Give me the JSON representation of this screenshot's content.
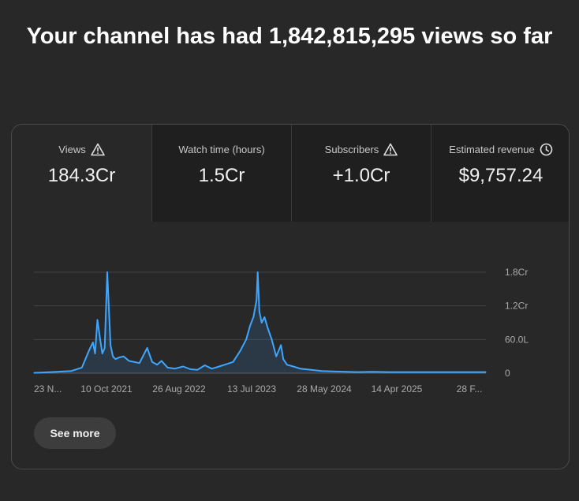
{
  "headline": "Your channel has had 1,842,815,295 views so far",
  "tabs": [
    {
      "label": "Views",
      "value": "184.3Cr",
      "icon": "warning-icon"
    },
    {
      "label": "Watch time (hours)",
      "value": "1.5Cr",
      "icon": ""
    },
    {
      "label": "Subscribers",
      "value": "+1.0Cr",
      "icon": "warning-icon"
    },
    {
      "label": "Estimated revenue",
      "value": "$9,757.24",
      "icon": "clock-icon"
    }
  ],
  "see_more_label": "See more",
  "colors": {
    "line": "#3ea6ff",
    "background": "#282828",
    "tab_inactive": "#1f1f1f"
  },
  "chart_data": {
    "type": "area",
    "series": [
      {
        "x": [
          "2020-11-23",
          "2021-01-15",
          "2021-03-01",
          "2021-05-01",
          "2021-06-15",
          "2021-07-15",
          "2021-08-01",
          "2021-08-10",
          "2021-08-20",
          "2021-09-01",
          "2021-09-10",
          "2021-09-20",
          "2021-10-01",
          "2021-10-15",
          "2021-10-25",
          "2021-11-05",
          "2021-11-20",
          "2021-12-10",
          "2022-01-01",
          "2022-02-15",
          "2022-03-20",
          "2022-04-10",
          "2022-05-01",
          "2022-05-20",
          "2022-06-15",
          "2022-07-15",
          "2022-08-20",
          "2022-09-20",
          "2022-10-20",
          "2022-11-20",
          "2022-12-20",
          "2023-01-20",
          "2023-02-20",
          "2023-03-20",
          "2023-04-20",
          "2023-05-15",
          "2023-06-01",
          "2023-06-15",
          "2023-06-28",
          "2023-07-03",
          "2023-07-10",
          "2023-07-20",
          "2023-08-01",
          "2023-08-15",
          "2023-09-01",
          "2023-09-20",
          "2023-10-10",
          "2023-10-20",
          "2023-11-05",
          "2023-12-01",
          "2024-01-01",
          "2024-02-15",
          "2024-04-01",
          "2024-05-28",
          "2024-07-15",
          "2024-09-01",
          "2024-11-01",
          "2025-01-15",
          "2025-04-14",
          "2025-07-01",
          "2025-10-01",
          "2026-02-28"
        ],
        "values": [
          0.6,
          1.5,
          2.5,
          4,
          10,
          40,
          55,
          35,
          95,
          60,
          35,
          45,
          180,
          50,
          30,
          25,
          28,
          30,
          22,
          18,
          45,
          20,
          15,
          22,
          10,
          8,
          12,
          7,
          6,
          14,
          8,
          12,
          16,
          20,
          40,
          60,
          85,
          100,
          130,
          180,
          110,
          90,
          100,
          80,
          60,
          30,
          50,
          25,
          15,
          12,
          8,
          6,
          4,
          3,
          2.5,
          2,
          2.5,
          2,
          2,
          2,
          2,
          2
        ]
      }
    ],
    "xtick_labels": [
      "23 N...",
      "10 Oct 2021",
      "26 Aug 2022",
      "13 Jul 2023",
      "28 May 2024",
      "14 Apr 2025",
      "28 F..."
    ],
    "ytick_labels": [
      "1.8Cr",
      "1.2Cr",
      "60.0L",
      "0"
    ],
    "ylim": [
      0,
      180
    ],
    "y_unit": "lakh views",
    "grid": true
  }
}
